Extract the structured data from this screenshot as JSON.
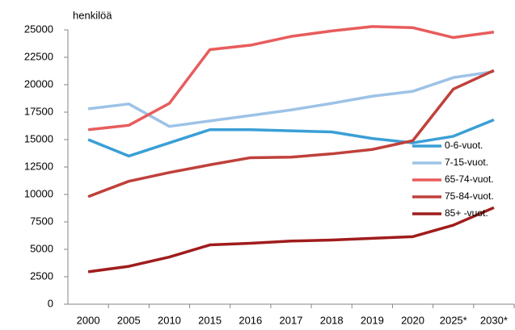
{
  "chart_data": {
    "type": "line",
    "ylabel": "henkilöä",
    "categories": [
      "2000",
      "2005",
      "2010",
      "2015",
      "2016",
      "2017",
      "2018",
      "2019",
      "2020",
      "2025*",
      "2030*"
    ],
    "series": [
      {
        "name": "0-6-vuot.",
        "color": "#3a9fd6",
        "values": [
          15000,
          13500,
          14700,
          15900,
          15900,
          15800,
          15700,
          15100,
          14700,
          15300,
          16800
        ]
      },
      {
        "name": "7-15-vuot.",
        "color": "#9dc3e6",
        "values": [
          17800,
          18250,
          16200,
          16700,
          17200,
          17700,
          18300,
          18950,
          19400,
          20650,
          21200
        ]
      },
      {
        "name": "65-74-vuot.",
        "color": "#e85c5c",
        "values": [
          15900,
          16300,
          18300,
          23200,
          23600,
          24400,
          24900,
          25300,
          25200,
          24300,
          24800
        ]
      },
      {
        "name": "75-84-vuot.",
        "color": "#c0403b",
        "values": [
          9800,
          11200,
          12000,
          12700,
          13350,
          13400,
          13700,
          14100,
          14900,
          19600,
          21300
        ]
      },
      {
        "name": "85+ -vuot.",
        "color": "#a01c1c",
        "values": [
          2950,
          3450,
          4300,
          5400,
          5550,
          5750,
          5850,
          6000,
          6150,
          7200,
          8800
        ]
      }
    ],
    "ylim": [
      0,
      25000
    ],
    "yticks": [
      0,
      2500,
      5000,
      7500,
      10000,
      12500,
      15000,
      17500,
      20000,
      22500,
      25000
    ]
  }
}
